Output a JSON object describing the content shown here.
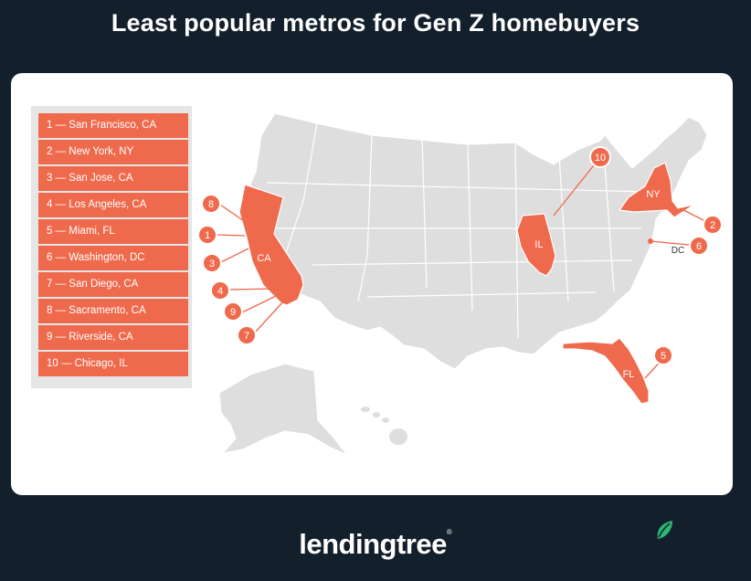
{
  "title": "Least popular metros for Gen Z homebuyers",
  "colors": {
    "background": "#13202c",
    "highlight": "#ef6a4d",
    "land": "#dedede",
    "borders": "#ffffff"
  },
  "legend": [
    {
      "rank": "1",
      "label": "1 — San Francisco, CA"
    },
    {
      "rank": "2",
      "label": "2 — New York, NY"
    },
    {
      "rank": "3",
      "label": "3 — San Jose, CA"
    },
    {
      "rank": "4",
      "label": "4 — Los Angeles, CA"
    },
    {
      "rank": "5",
      "label": "5 — Miami, FL"
    },
    {
      "rank": "6",
      "label": "6 — Washington, DC"
    },
    {
      "rank": "7",
      "label": "7 — San Diego, CA"
    },
    {
      "rank": "8",
      "label": "8 — Sacramento, CA"
    },
    {
      "rank": "9",
      "label": "9 — Riverside, CA"
    },
    {
      "rank": "10",
      "label": "10 — Chicago, IL"
    }
  ],
  "state_labels": {
    "ca": "CA",
    "il": "IL",
    "ny": "NY",
    "fl": "FL",
    "dc": "DC"
  },
  "markers": {
    "m1": "1",
    "m2": "2",
    "m3": "3",
    "m4": "4",
    "m5": "5",
    "m6": "6",
    "m7": "7",
    "m8": "8",
    "m9": "9",
    "m10": "10"
  },
  "highlighted_states": [
    "California",
    "Illinois",
    "New York",
    "Florida"
  ],
  "brand": {
    "name": "lendingtree",
    "trademark": "®",
    "icon": "leaf-icon"
  }
}
